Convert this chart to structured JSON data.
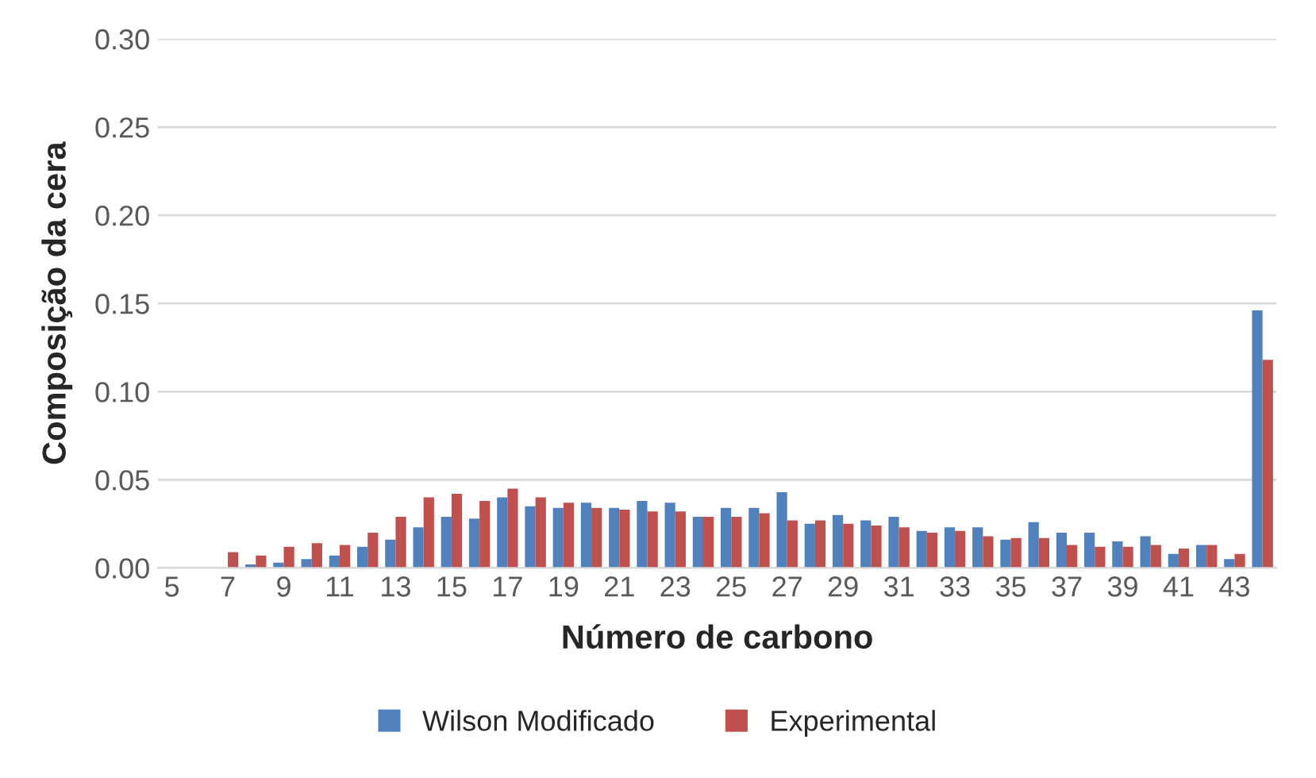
{
  "chart_data": {
    "type": "bar",
    "xlabel": "Número de carbono",
    "ylabel": "Composição da cera",
    "categories": [
      "5",
      null,
      "7",
      null,
      "9",
      null,
      "11",
      null,
      "13",
      null,
      "15",
      null,
      "17",
      null,
      "19",
      null,
      "21",
      null,
      "23",
      null,
      "25",
      null,
      "27",
      null,
      "29",
      null,
      "31",
      null,
      "33",
      null,
      "35",
      null,
      "37",
      null,
      "39",
      null,
      "41",
      null,
      "43",
      null
    ],
    "series": [
      {
        "name": "Wilson Modificado",
        "color": "#4f81bd",
        "values": [
          0,
          0,
          0,
          0.002,
          0.003,
          0.005,
          0.007,
          0.012,
          0.016,
          0.023,
          0.029,
          0.028,
          0.04,
          0.035,
          0.034,
          0.037,
          0.034,
          0.038,
          0.037,
          0.029,
          0.034,
          0.034,
          0.043,
          0.025,
          0.03,
          0.027,
          0.029,
          0.021,
          0.023,
          0.023,
          0.016,
          0.026,
          0.02,
          0.02,
          0.015,
          0.018,
          0.008,
          0.013,
          0.005,
          0.146
        ]
      },
      {
        "name": "Experimental",
        "color": "#c0504d",
        "values": [
          0,
          0,
          0.009,
          0.007,
          0.012,
          0.014,
          0.013,
          0.02,
          0.029,
          0.04,
          0.042,
          0.038,
          0.045,
          0.04,
          0.037,
          0.034,
          0.033,
          0.032,
          0.032,
          0.029,
          0.029,
          0.031,
          0.027,
          0.027,
          0.025,
          0.024,
          0.023,
          0.02,
          0.021,
          0.018,
          0.017,
          0.017,
          0.013,
          0.012,
          0.012,
          0.013,
          0.011,
          0.013,
          0.008,
          0.118
        ]
      }
    ],
    "ylim": [
      0,
      0.3
    ],
    "yticks": [
      {
        "value": 0,
        "label": "0.00"
      },
      {
        "value": 0.05,
        "label": "0.05"
      },
      {
        "value": 0.1,
        "label": "0.10"
      },
      {
        "value": 0.15,
        "label": "0.15"
      },
      {
        "value": 0.2,
        "label": "0.20"
      },
      {
        "value": 0.25,
        "label": "0.25"
      },
      {
        "value": 0.3,
        "label": "0.30"
      }
    ],
    "grid": "y",
    "legend": "bottom"
  }
}
